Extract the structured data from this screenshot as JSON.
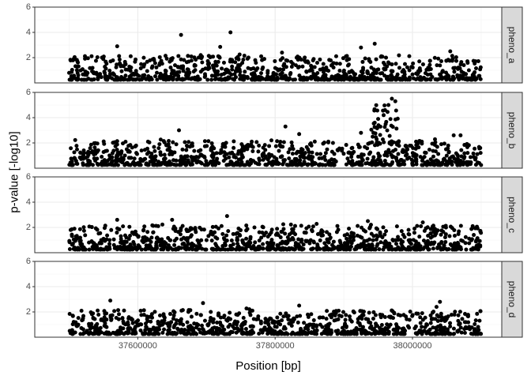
{
  "chart_data": {
    "type": "scatter",
    "xlabel": "Position [bp]",
    "ylabel": "p-value [-log10]",
    "xlim": [
      37450000,
      38130000
    ],
    "ylim": [
      0,
      6
    ],
    "x_range_data": [
      37500000,
      38100000
    ],
    "x_ticks": [
      37600000,
      37800000,
      38000000
    ],
    "x_tick_labels": [
      "37600000",
      "37800000",
      "38000000"
    ],
    "y_ticks": [
      2,
      4,
      6
    ],
    "y_tick_labels": [
      "2",
      "4",
      "6"
    ],
    "grid": true,
    "facet_strip_position": "right",
    "point_color": "#000000",
    "panels": [
      {
        "name": "pheno_a",
        "notable_points": [
          {
            "x": 37735000,
            "y": 4.0
          },
          {
            "x": 37663000,
            "y": 3.8
          },
          {
            "x": 37945000,
            "y": 3.1
          },
          {
            "x": 37570000,
            "y": 2.9
          },
          {
            "x": 37720000,
            "y": 2.85
          },
          {
            "x": 37925000,
            "y": 2.8
          },
          {
            "x": 38055000,
            "y": 2.5
          },
          {
            "x": 37810000,
            "y": 2.4
          }
        ]
      },
      {
        "name": "pheno_b",
        "notable_points": [
          {
            "x": 37970000,
            "y": 5.5
          },
          {
            "x": 37975000,
            "y": 5.3
          },
          {
            "x": 37965000,
            "y": 5.0
          },
          {
            "x": 37960000,
            "y": 4.6
          },
          {
            "x": 37958000,
            "y": 4.2
          },
          {
            "x": 37950000,
            "y": 3.9
          },
          {
            "x": 37945000,
            "y": 3.6
          },
          {
            "x": 37660000,
            "y": 3.0
          },
          {
            "x": 37815000,
            "y": 3.3
          },
          {
            "x": 37835000,
            "y": 2.7
          },
          {
            "x": 37925000,
            "y": 2.8
          },
          {
            "x": 38060000,
            "y": 2.6
          },
          {
            "x": 38070000,
            "y": 2.6
          }
        ]
      },
      {
        "name": "pheno_c",
        "notable_points": [
          {
            "x": 37730000,
            "y": 2.9
          },
          {
            "x": 37650000,
            "y": 2.6
          },
          {
            "x": 37570000,
            "y": 2.6
          },
          {
            "x": 37935000,
            "y": 2.5
          },
          {
            "x": 38015000,
            "y": 2.4
          }
        ]
      },
      {
        "name": "pheno_d",
        "notable_points": [
          {
            "x": 37560000,
            "y": 2.9
          },
          {
            "x": 38040000,
            "y": 2.8
          },
          {
            "x": 37695000,
            "y": 2.7
          },
          {
            "x": 37835000,
            "y": 2.5
          },
          {
            "x": 38035000,
            "y": 2.4
          }
        ]
      }
    ],
    "background_noise": {
      "n_points_per_panel": 900,
      "y_range": [
        0.3,
        1.8
      ]
    }
  }
}
